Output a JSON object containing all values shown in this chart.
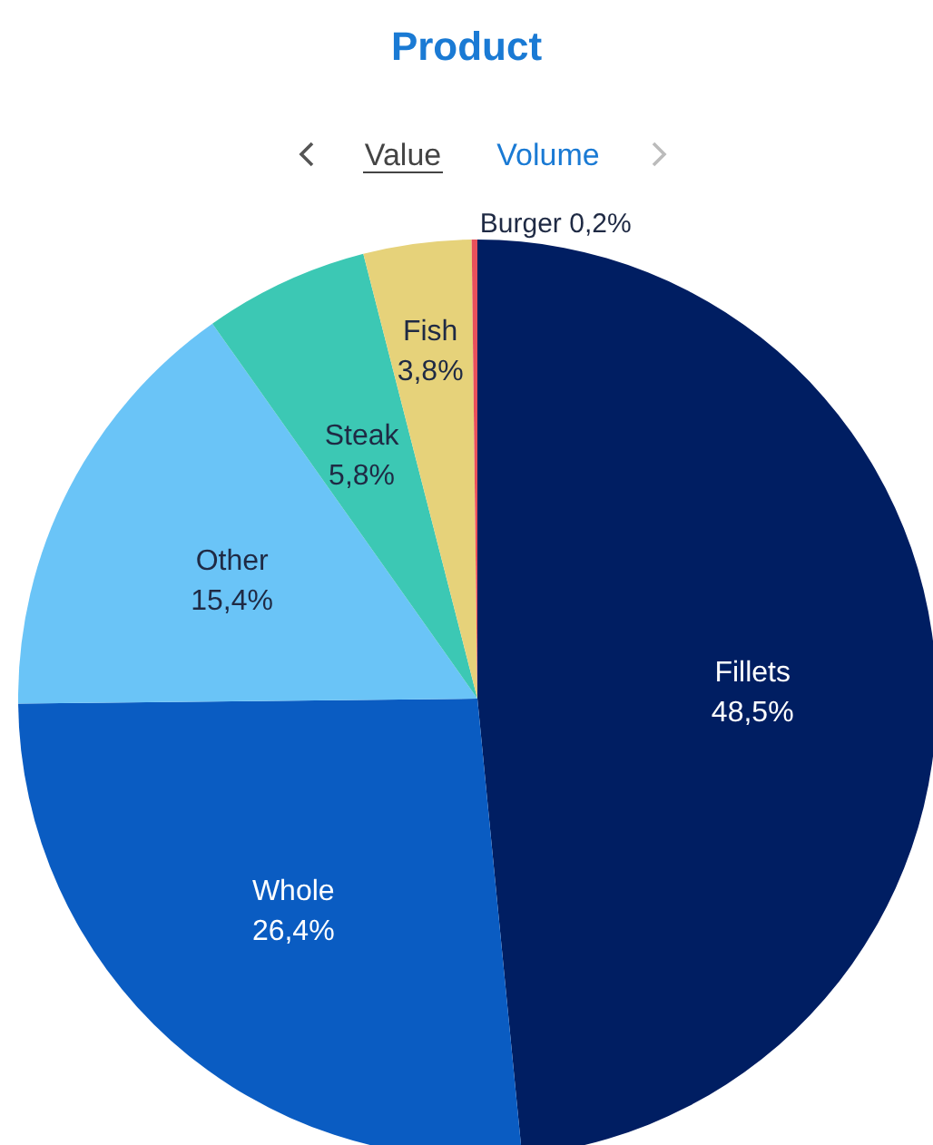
{
  "chart_data": {
    "type": "pie",
    "title": "Product",
    "annotations": [
      "Value",
      "Volume"
    ],
    "categories": [
      "Fillets",
      "Whole",
      "Other",
      "Steak",
      "Fish",
      "Burger"
    ],
    "values": [
      48.5,
      26.4,
      15.4,
      5.8,
      3.8,
      0.2
    ],
    "value_labels": [
      "48,5%",
      "26,4%",
      "15,4%",
      "5,8%",
      "3,8%",
      "0,2%"
    ],
    "colors": [
      "#001e62",
      "#0a5cc2",
      "#6ac4f7",
      "#3cc8b4",
      "#e6d27a",
      "#e8505b"
    ]
  }
}
